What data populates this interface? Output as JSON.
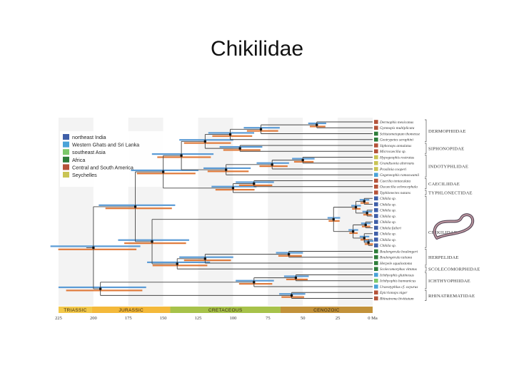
{
  "title": "Chikilidae",
  "legend": [
    {
      "label": "northeast India",
      "color": "#3f5fa8"
    },
    {
      "label": "Western Ghats and Sri Lanka",
      "color": "#4aa3d8"
    },
    {
      "label": "southeast Asia",
      "color": "#7cc86a"
    },
    {
      "label": "Africa",
      "color": "#2e7d3a"
    },
    {
      "label": "Central and South America",
      "color": "#b5533a"
    },
    {
      "label": "Seychelles",
      "color": "#c9c454"
    }
  ],
  "taxa": [
    {
      "name": "Dermophis mexicanus",
      "color": "#b5533a"
    },
    {
      "name": "Gymnopis multiplicata",
      "color": "#b5533a"
    },
    {
      "name": "Schistometopum thomense",
      "color": "#2e7d3a"
    },
    {
      "name": "Geotrypetes seraphini",
      "color": "#2e7d3a"
    },
    {
      "name": "Siphonops annulatus",
      "color": "#b5533a"
    },
    {
      "name": "Microcaecilia sp.",
      "color": "#b5533a"
    },
    {
      "name": "Hypogeophis rostratus",
      "color": "#c9c454"
    },
    {
      "name": "Grandisonia alternans",
      "color": "#c9c454"
    },
    {
      "name": "Praslinia cooperi",
      "color": "#c9c454"
    },
    {
      "name": "Gegeneophis ramaswamii",
      "color": "#4aa3d8"
    },
    {
      "name": "Caecilia tentaculata",
      "color": "#b5533a"
    },
    {
      "name": "Oscaecilia ochrocephala",
      "color": "#b5533a"
    },
    {
      "name": "Typhlonectes natans",
      "color": "#b5533a"
    },
    {
      "name": "Chikila sp.",
      "color": "#3f5fa8"
    },
    {
      "name": "Chikila sp.",
      "color": "#3f5fa8"
    },
    {
      "name": "Chikila sp.",
      "color": "#3f5fa8"
    },
    {
      "name": "Chikila sp.",
      "color": "#3f5fa8"
    },
    {
      "name": "Chikila sp.",
      "color": "#3f5fa8"
    },
    {
      "name": "Chikila fulleri",
      "color": "#3f5fa8"
    },
    {
      "name": "Chikila sp.",
      "color": "#3f5fa8"
    },
    {
      "name": "Chikila sp.",
      "color": "#3f5fa8"
    },
    {
      "name": "Chikila sp.",
      "color": "#3f5fa8"
    },
    {
      "name": "Boulengerula boulengeri",
      "color": "#2e7d3a"
    },
    {
      "name": "Boulengerula taitana",
      "color": "#2e7d3a"
    },
    {
      "name": "Herpele squalostoma",
      "color": "#2e7d3a"
    },
    {
      "name": "Scolecomorphus vittatus",
      "color": "#2e7d3a"
    },
    {
      "name": "Ichthyophis glutinosus",
      "color": "#4aa3d8"
    },
    {
      "name": "Ichthyophis bannanicus",
      "color": "#7cc86a"
    },
    {
      "name": "Uraeotyphlus cf. oxyurus",
      "color": "#4aa3d8"
    },
    {
      "name": "Epicrionops niger",
      "color": "#b5533a"
    },
    {
      "name": "Rhinatrema bivittatum",
      "color": "#b5533a"
    }
  ],
  "families": [
    {
      "label": "DERMOPHIIDAE",
      "from": 0,
      "to": 3
    },
    {
      "label": "SIPHONOPIDAE",
      "from": 4,
      "to": 5
    },
    {
      "label": "INDOTYPHLIDAE",
      "from": 6,
      "to": 9
    },
    {
      "label": "CAECILIIDAE",
      "from": 10,
      "to": 11
    },
    {
      "label": "TYPHLONECTIDAE",
      "from": 12,
      "to": 12
    },
    {
      "label": "CHIKILIDAE",
      "from": 13,
      "to": 21
    },
    {
      "label": "HERPELIDAE",
      "from": 22,
      "to": 24
    },
    {
      "label": "SCOLECOMORPHIDAE",
      "from": 25,
      "to": 25
    },
    {
      "label": "ICHTHYOPHIIDAE",
      "from": 26,
      "to": 28
    },
    {
      "label": "RHINATREMATIDAE",
      "from": 29,
      "to": 30
    }
  ],
  "eras": [
    {
      "label": "TRIASSIC",
      "start": 225,
      "end": 201,
      "color": "#f2c84a"
    },
    {
      "label": "JURASSIC",
      "start": 201,
      "end": 145,
      "color": "#f4b93a"
    },
    {
      "label": "CRETACEOUS",
      "start": 145,
      "end": 66,
      "color": "#a7c24a"
    },
    {
      "label": "CENOZOIC",
      "start": 66,
      "end": 0,
      "color": "#c2923a"
    }
  ],
  "time_axis": {
    "ticks": [
      "225",
      "200",
      "175",
      "150",
      "125",
      "100",
      "75",
      "50",
      "25",
      "0 Ma"
    ]
  },
  "tree": {
    "name": "root",
    "age": 200,
    "children": [
      {
        "name": "teresomata",
        "age": 170,
        "children": [
          {
            "name": "n-core",
            "age": 150,
            "children": [
              {
                "name": "n-a",
                "age": 137,
                "children": [
                  {
                    "name": "n-derm-siph",
                    "age": 120,
                    "children": [
                      {
                        "name": "n-derm",
                        "age": 102,
                        "children": [
                          {
                            "name": "n-derm1",
                            "age": 80,
                            "children": [
                              {
                                "name": "n-derm2",
                                "age": 40,
                                "children": [
                                  {
                                    "leaf": 0
                                  },
                                  {
                                    "leaf": 1
                                  }
                                ]
                              },
                              {
                                "leaf": 2
                              }
                            ]
                          },
                          {
                            "leaf": 3
                          }
                        ]
                      },
                      {
                        "name": "n-siph",
                        "age": 95,
                        "children": [
                          {
                            "leaf": 4
                          },
                          {
                            "leaf": 5
                          }
                        ]
                      }
                    ]
                  },
                  {
                    "name": "n-indo",
                    "age": 105,
                    "children": [
                      {
                        "name": "n-indo1",
                        "age": 72,
                        "children": [
                          {
                            "name": "n-indo2",
                            "age": 50,
                            "children": [
                              {
                                "leaf": 6
                              },
                              {
                                "leaf": 7
                              }
                            ]
                          },
                          {
                            "leaf": 8
                          }
                        ]
                      },
                      {
                        "leaf": 9
                      }
                    ]
                  }
                ]
              },
              {
                "name": "n-caec-typh",
                "age": 100,
                "children": [
                  {
                    "name": "n-caec",
                    "age": 85,
                    "children": [
                      {
                        "leaf": 10
                      },
                      {
                        "leaf": 11
                      }
                    ]
                  },
                  {
                    "leaf": 12
                  }
                ]
              }
            ]
          },
          {
            "name": "n-chik-herp",
            "age": 158,
            "children": [
              {
                "name": "n-chik",
                "age": 28,
                "children": [
                  {
                    "name": "n-chik-a",
                    "age": 12,
                    "children": [
                      {
                        "name": "n-chik-a1",
                        "age": 6,
                        "children": [
                          {
                            "leaf": 13
                          },
                          {
                            "leaf": 14
                          }
                        ]
                      },
                      {
                        "name": "n-chik-a2",
                        "age": 4,
                        "children": [
                          {
                            "leaf": 15
                          },
                          {
                            "leaf": 16
                          }
                        ]
                      }
                    ]
                  },
                  {
                    "name": "n-chik-b",
                    "age": 14,
                    "children": [
                      {
                        "name": "n-chik-b1",
                        "age": 5,
                        "children": [
                          {
                            "leaf": 17
                          },
                          {
                            "leaf": 18
                          }
                        ]
                      },
                      {
                        "name": "n-chik-b2",
                        "age": 6,
                        "children": [
                          {
                            "leaf": 19
                          },
                          {
                            "name": "n-chik-b3",
                            "age": 3,
                            "children": [
                              {
                                "leaf": 20
                              },
                              {
                                "leaf": 21
                              }
                            ]
                          }
                        ]
                      }
                    ]
                  }
                ]
              },
              {
                "name": "n-herp-scol",
                "age": 140,
                "children": [
                  {
                    "name": "n-herp",
                    "age": 120,
                    "children": [
                      {
                        "name": "n-boul",
                        "age": 60,
                        "children": [
                          {
                            "leaf": 22
                          },
                          {
                            "leaf": 23
                          }
                        ]
                      },
                      {
                        "leaf": 24
                      }
                    ]
                  },
                  {
                    "leaf": 25
                  }
                ]
              }
            ]
          }
        ]
      },
      {
        "name": "n-ich-rhin",
        "age": 195,
        "children": [
          {
            "name": "n-ich",
            "age": 85,
            "children": [
              {
                "name": "n-ich1",
                "age": 55,
                "children": [
                  {
                    "leaf": 26
                  },
                  {
                    "leaf": 27
                  }
                ]
              },
              {
                "leaf": 28
              }
            ]
          },
          {
            "name": "n-rhin",
            "age": 58,
            "children": [
              {
                "leaf": 29
              },
              {
                "leaf": 30
              }
            ]
          }
        ]
      }
    ]
  }
}
